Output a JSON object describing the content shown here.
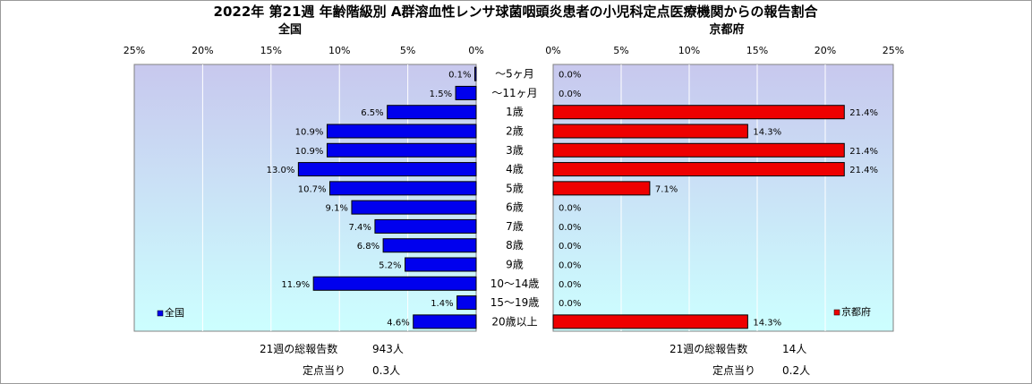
{
  "title": "2022年 第21週  年齢階級別 A群溶血性レンサ球菌咽頭炎患者の小児科定点医療機関からの報告割合",
  "categories": [
    "～5ヶ月",
    "～11ヶ月",
    "1歳",
    "2歳",
    "3歳",
    "4歳",
    "5歳",
    "6歳",
    "7歳",
    "8歳",
    "9歳",
    "10～14歳",
    "15～19歳",
    "20歳以上"
  ],
  "x_ticks": [
    "0%",
    "5%",
    "10%",
    "15%",
    "20%",
    "25%"
  ],
  "colors": {
    "national_bar": "#0000ee",
    "kyoto_bar": "#ee0000",
    "plot_top": "#c8c8ee",
    "plot_bottom": "#ccffff",
    "gridline": "#ffffff"
  },
  "chart_data": [
    {
      "type": "bar",
      "orientation": "horizontal",
      "direction": "right-to-left",
      "subtitle": "全国",
      "legend": "全国",
      "legend_position": "bottom-left",
      "xlim": [
        0,
        25
      ],
      "unit": "%",
      "grid": true,
      "values": [
        0.1,
        1.5,
        6.5,
        10.9,
        10.9,
        13.0,
        10.7,
        9.1,
        7.4,
        6.8,
        5.2,
        11.9,
        1.4,
        4.6
      ],
      "value_labels": [
        "0.1%",
        "1.5%",
        "6.5%",
        "10.9%",
        "10.9%",
        "13.0%",
        "10.7%",
        "9.1%",
        "7.4%",
        "6.8%",
        "5.2%",
        "11.9%",
        "1.4%",
        "4.6%"
      ],
      "footer": {
        "total_label": "21週の総報告数",
        "total_value": "943人",
        "per_site_label": "定点当り",
        "per_site_value": "0.3人"
      }
    },
    {
      "type": "bar",
      "orientation": "horizontal",
      "direction": "left-to-right",
      "subtitle": "京都府",
      "legend": "京都府",
      "legend_position": "bottom-right",
      "xlim": [
        0,
        25
      ],
      "unit": "%",
      "grid": true,
      "values": [
        0.0,
        0.0,
        21.4,
        14.3,
        21.4,
        21.4,
        7.1,
        0.0,
        0.0,
        0.0,
        0.0,
        0.0,
        0.0,
        14.3
      ],
      "value_labels": [
        "0.0%",
        "0.0%",
        "21.4%",
        "14.3%",
        "21.4%",
        "21.4%",
        "7.1%",
        "0.0%",
        "0.0%",
        "0.0%",
        "0.0%",
        "0.0%",
        "0.0%",
        "14.3%"
      ],
      "footer": {
        "total_label": "21週の総報告数",
        "total_value": "14人",
        "per_site_label": "定点当り",
        "per_site_value": "0.2人"
      }
    }
  ]
}
